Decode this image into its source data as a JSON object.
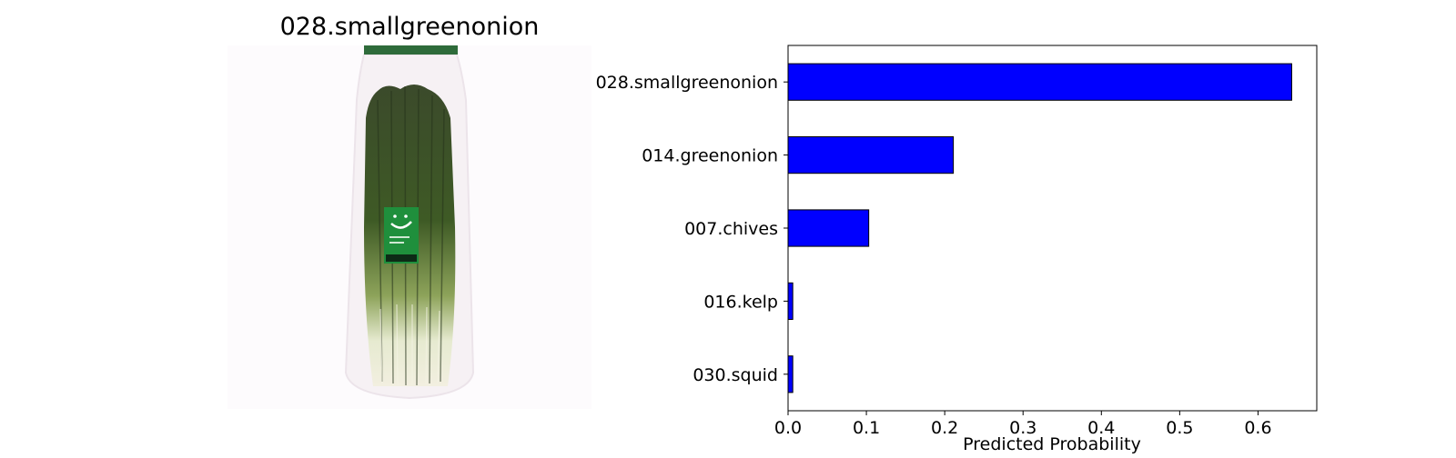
{
  "image_panel": {
    "title": "028.smallgreenonion",
    "photo": "bundle-of-green-onions-in-plastic-bag",
    "colors": {
      "leaf_dark": "#2f3d22",
      "leaf_mid": "#4d6a2f",
      "stem": "#e9eccf",
      "label": "#1f8f3c",
      "bag_cap": "#2e6b3a"
    }
  },
  "chart_data": {
    "type": "bar",
    "orientation": "horizontal",
    "categories": [
      "028.smallgreenonion",
      "014.greenonion",
      "007.chives",
      "016.kelp",
      "030.squid"
    ],
    "values": [
      0.643,
      0.211,
      0.103,
      0.006,
      0.006
    ],
    "xlabel": "Predicted Probability",
    "ylabel": "",
    "xlim": [
      0,
      0.675
    ],
    "xticks": [
      0.0,
      0.1,
      0.2,
      0.3,
      0.4,
      0.5,
      0.6
    ],
    "xtick_labels": [
      "0.0",
      "0.1",
      "0.2",
      "0.3",
      "0.4",
      "0.5",
      "0.6"
    ],
    "bar_color": "#0000ff",
    "edge_color": "#000000",
    "grid": false
  }
}
